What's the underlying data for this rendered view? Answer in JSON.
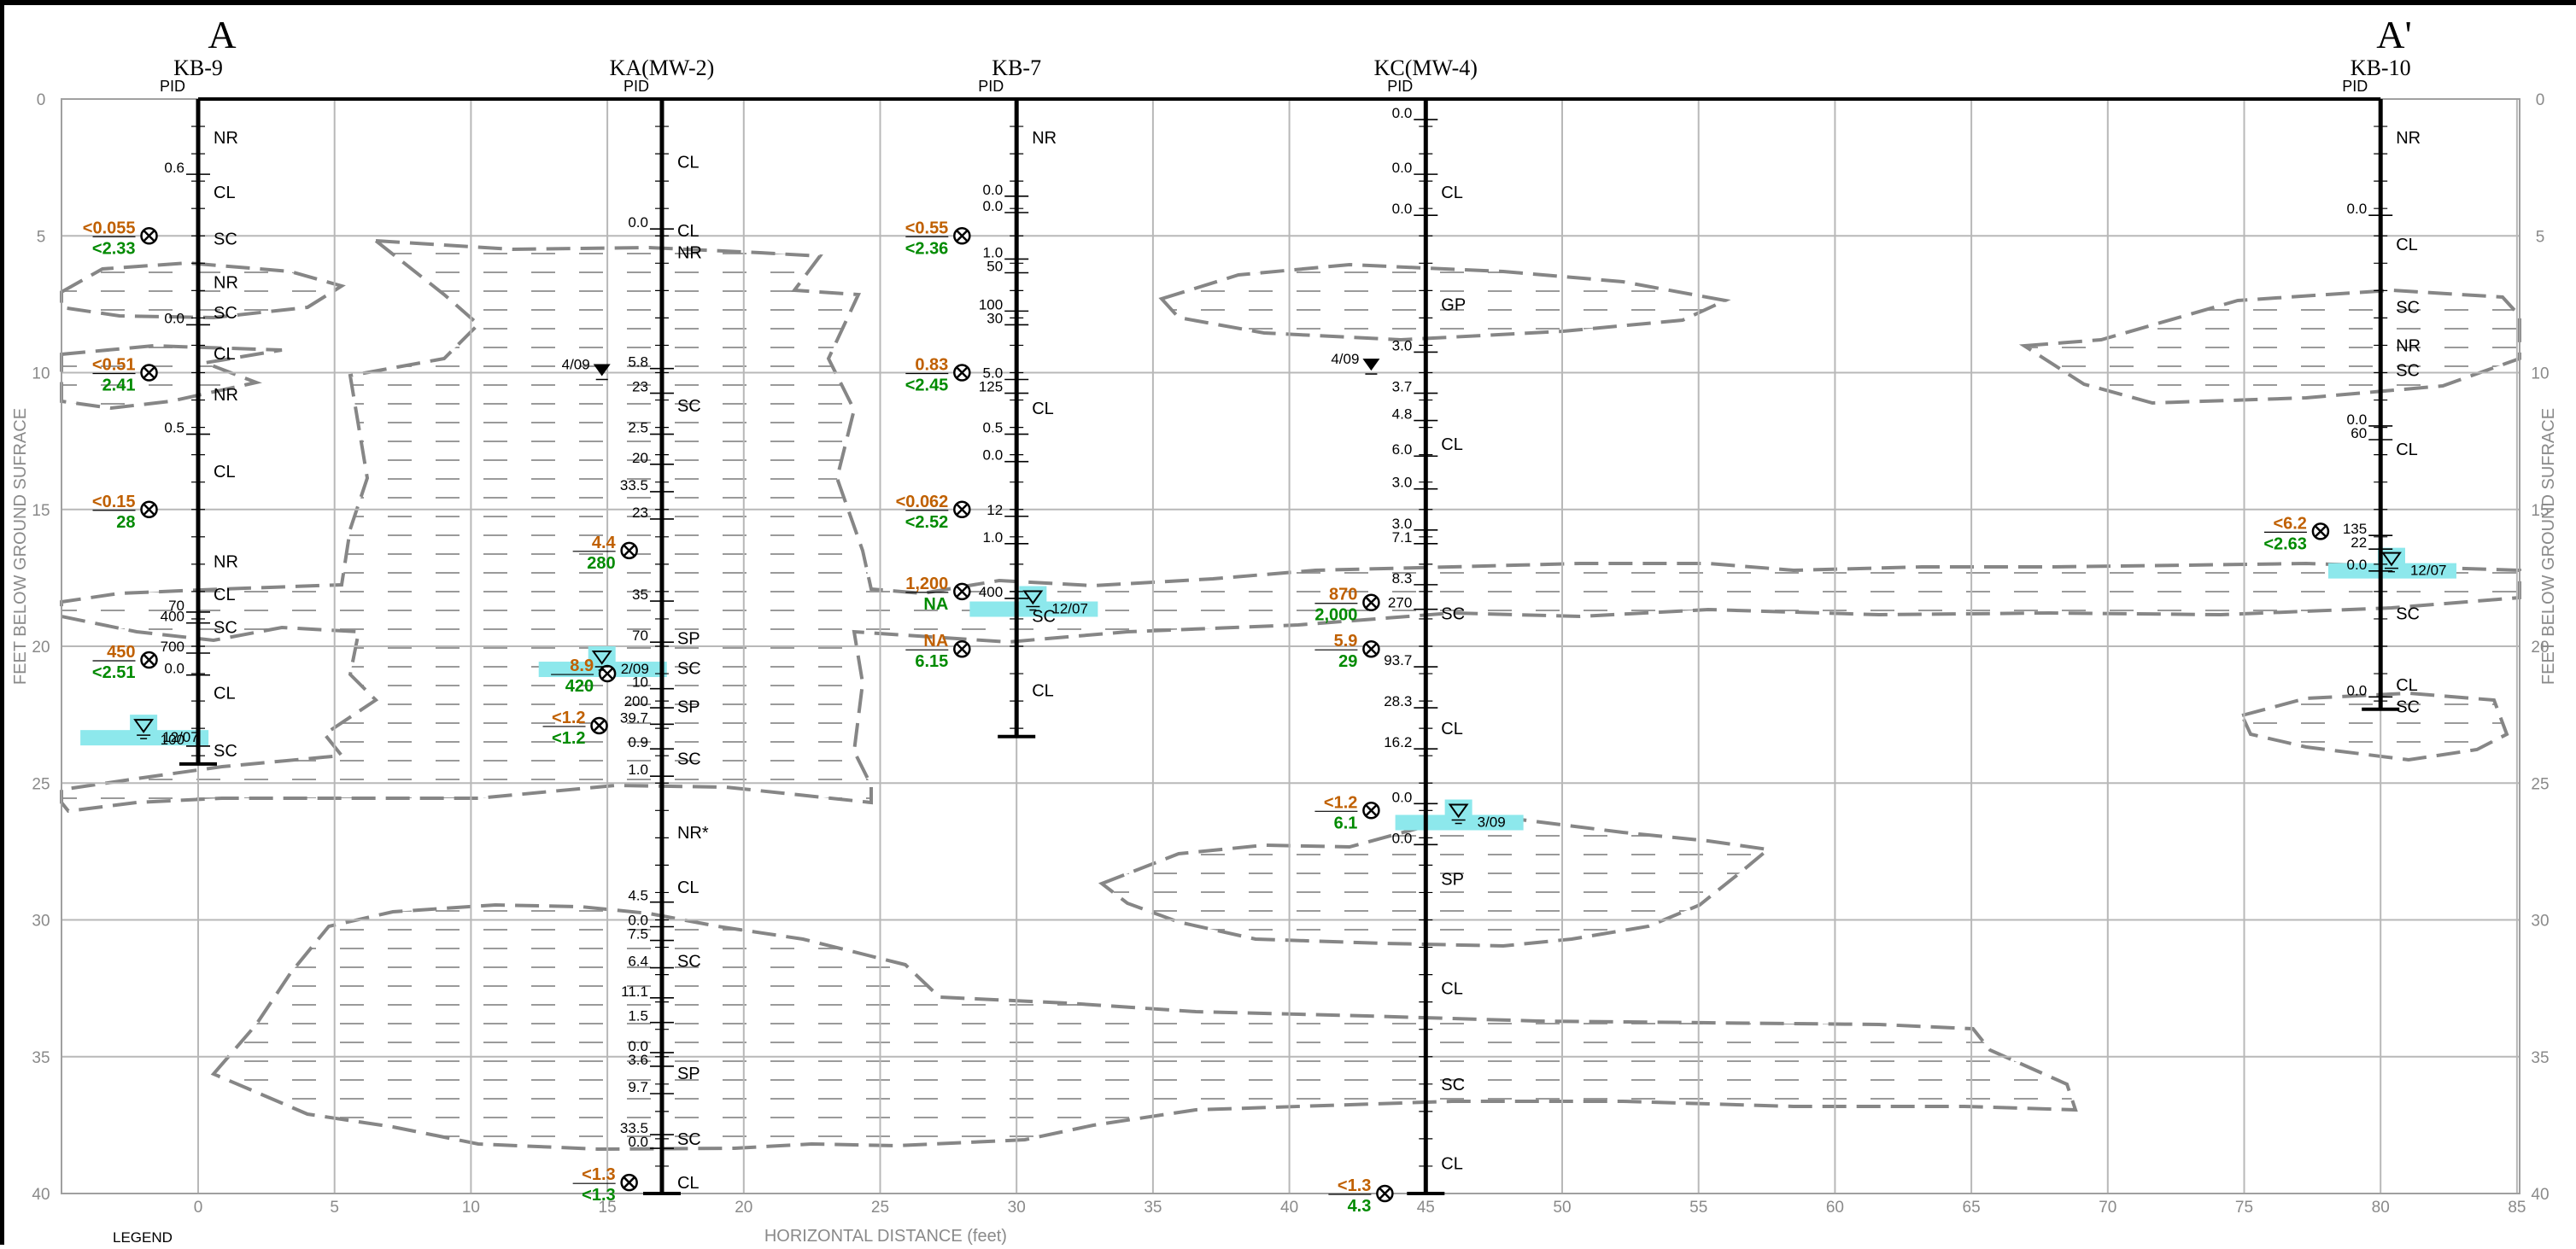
{
  "section": {
    "left_label": "A",
    "right_label": "A'"
  },
  "axes": {
    "x_label": "HORIZONTAL DISTANCE (feet)",
    "y_label": "FEET BELOW GROUND SUFRACE",
    "x_ticks": [
      0,
      5,
      10,
      15,
      20,
      25,
      30,
      35,
      40,
      45,
      50,
      55,
      60,
      65,
      70,
      75,
      80,
      85
    ],
    "y_ticks": [
      0,
      5,
      10,
      15,
      20,
      25,
      30,
      35,
      40
    ],
    "x_range": [
      -5,
      85
    ],
    "y_range": [
      0,
      40
    ]
  },
  "legend_title": "LEGEND",
  "colors": {
    "soil": "#c06000",
    "water": "#008a00",
    "watertable": "#8de8ec",
    "lens": "#888888"
  },
  "borings": [
    {
      "name": "KB-9",
      "x": 0,
      "pid_label": "PID",
      "depth": 24.3,
      "pid": [
        {
          "d": 2.5,
          "v": "0.6"
        },
        {
          "d": 8.0,
          "v": "0.0"
        },
        {
          "d": 12.0,
          "v": "0.5"
        },
        {
          "d": 18.5,
          "v": "70"
        },
        {
          "d": 18.9,
          "v": "400"
        },
        {
          "d": 20.0,
          "v": "700"
        },
        {
          "d": 20.8,
          "v": "0.0"
        },
        {
          "d": 23.4,
          "v": "100"
        }
      ],
      "soils": [
        {
          "d": 1.4,
          "t": "NR"
        },
        {
          "d": 3.4,
          "t": "CL"
        },
        {
          "d": 5.1,
          "t": "SC"
        },
        {
          "d": 6.7,
          "t": "NR"
        },
        {
          "d": 7.8,
          "t": "SC"
        },
        {
          "d": 9.3,
          "t": "CL"
        },
        {
          "d": 10.8,
          "t": "NR"
        },
        {
          "d": 13.6,
          "t": "CL"
        },
        {
          "d": 16.9,
          "t": "NR"
        },
        {
          "d": 18.1,
          "t": "CL"
        },
        {
          "d": 19.3,
          "t": "SC"
        },
        {
          "d": 21.7,
          "t": "CL"
        },
        {
          "d": 23.8,
          "t": "SC"
        }
      ],
      "samples": [
        {
          "d": 5.0,
          "x": -1.8,
          "soil": "<0.055",
          "water": "<2.33"
        },
        {
          "d": 10.0,
          "x": -1.8,
          "soil": "<0.51",
          "water": "2.41"
        },
        {
          "d": 15.0,
          "x": -1.8,
          "soil": "<0.15",
          "water": "28"
        },
        {
          "d": 20.5,
          "x": -1.8,
          "soil": "450",
          "water": "<2.51"
        }
      ],
      "water_level": {
        "d": 23.0,
        "x": -2.0,
        "date": "12/07",
        "measured": false
      }
    },
    {
      "name": "KA(MW-2)",
      "x": 17,
      "pid_label": "PID",
      "depth": 40,
      "pid": [
        {
          "d": 4.5,
          "v": "0.0"
        },
        {
          "d": 9.6,
          "v": "5.8"
        },
        {
          "d": 10.5,
          "v": "23"
        },
        {
          "d": 12.0,
          "v": "2.5"
        },
        {
          "d": 13.1,
          "v": "20"
        },
        {
          "d": 14.1,
          "v": "33.5"
        },
        {
          "d": 15.1,
          "v": "23"
        },
        {
          "d": 18.1,
          "v": "35"
        },
        {
          "d": 19.6,
          "v": "70"
        },
        {
          "d": 21.3,
          "v": "10"
        },
        {
          "d": 22.0,
          "v": "200"
        },
        {
          "d": 22.6,
          "v": "39.7"
        },
        {
          "d": 23.5,
          "v": "0.9"
        },
        {
          "d": 24.5,
          "v": "1.0"
        },
        {
          "d": 29.1,
          "v": "4.5"
        },
        {
          "d": 30.0,
          "v": "0.0"
        },
        {
          "d": 30.5,
          "v": "7.5"
        },
        {
          "d": 31.5,
          "v": "6.4"
        },
        {
          "d": 32.6,
          "v": "11.1"
        },
        {
          "d": 33.5,
          "v": "1.5"
        },
        {
          "d": 34.6,
          "v": "0.0"
        },
        {
          "d": 35.1,
          "v": "3.6"
        },
        {
          "d": 36.1,
          "v": "9.7"
        },
        {
          "d": 37.6,
          "v": "33.5"
        },
        {
          "d": 38.1,
          "v": "0.0"
        }
      ],
      "soils": [
        {
          "d": 2.3,
          "t": "CL"
        },
        {
          "d": 4.8,
          "t": "CL"
        },
        {
          "d": 5.6,
          "t": "NR"
        },
        {
          "d": 11.2,
          "t": "SC"
        },
        {
          "d": 19.7,
          "t": "SP"
        },
        {
          "d": 20.8,
          "t": "SC"
        },
        {
          "d": 22.2,
          "t": "SP"
        },
        {
          "d": 24.1,
          "t": "SC"
        },
        {
          "d": 26.8,
          "t": "NR*"
        },
        {
          "d": 28.8,
          "t": "CL"
        },
        {
          "d": 31.5,
          "t": "SC"
        },
        {
          "d": 35.6,
          "t": "SP"
        },
        {
          "d": 38.0,
          "t": "SC"
        },
        {
          "d": 39.6,
          "t": "CL"
        }
      ],
      "samples": [
        {
          "d": 16.5,
          "x": 15.8,
          "soil": "4.4",
          "water": "280"
        },
        {
          "d": 21.0,
          "x": 15.0,
          "soil": "8.9",
          "water": "420"
        },
        {
          "d": 22.9,
          "x": 14.7,
          "soil": "<1.2",
          "water": "<1.2"
        },
        {
          "d": 39.6,
          "x": 15.8,
          "soil": "<1.3",
          "water": "<1.3"
        }
      ],
      "water_level": {
        "d": 20.5,
        "x": 14.8,
        "date": "2/09",
        "measured": false
      },
      "measured_level": {
        "d": 10.0,
        "x": 14.8,
        "date": "4/09"
      }
    },
    {
      "name": "KB-7",
      "x": 30,
      "pid_label": "PID",
      "depth": 23.3,
      "pid": [
        {
          "d": 3.3,
          "v": "0.0"
        },
        {
          "d": 3.9,
          "v": "0.0"
        },
        {
          "d": 5.6,
          "v": "1.0"
        },
        {
          "d": 6.1,
          "v": "50"
        },
        {
          "d": 7.5,
          "v": "100"
        },
        {
          "d": 8.0,
          "v": "30"
        },
        {
          "d": 10.0,
          "v": "5.0"
        },
        {
          "d": 10.5,
          "v": "125"
        },
        {
          "d": 12.0,
          "v": "0.5"
        },
        {
          "d": 13.0,
          "v": "0.0"
        },
        {
          "d": 15.0,
          "v": "12"
        },
        {
          "d": 16.0,
          "v": "1.0"
        },
        {
          "d": 18.0,
          "v": "400"
        }
      ],
      "soils": [
        {
          "d": 1.4,
          "t": "NR"
        },
        {
          "d": 11.3,
          "t": "CL"
        },
        {
          "d": 18.9,
          "t": "SC"
        },
        {
          "d": 21.6,
          "t": "CL"
        }
      ],
      "samples": [
        {
          "d": 5.0,
          "x": 28.0,
          "soil": "<0.55",
          "water": "<2.36"
        },
        {
          "d": 10.0,
          "x": 28.0,
          "soil": "0.83",
          "water": "<2.45"
        },
        {
          "d": 15.0,
          "x": 28.0,
          "soil": "<0.062",
          "water": "<2.52"
        },
        {
          "d": 18.0,
          "x": 28.0,
          "soil": "1,200",
          "water": "NA"
        },
        {
          "d": 20.1,
          "x": 28.0,
          "soil": "NA",
          "water": "6.15"
        }
      ],
      "water_level": {
        "d": 18.3,
        "x": 30.6,
        "date": "12/07",
        "measured": false
      }
    },
    {
      "name": "KC(MW-4)",
      "x": 45,
      "pid_label": "PID",
      "depth": 40,
      "pid": [
        {
          "d": 0.5,
          "v": "0.0"
        },
        {
          "d": 2.5,
          "v": "0.0"
        },
        {
          "d": 4.0,
          "v": "0.0"
        },
        {
          "d": 9.0,
          "v": "3.0"
        },
        {
          "d": 10.5,
          "v": "3.7"
        },
        {
          "d": 11.5,
          "v": "4.8"
        },
        {
          "d": 12.8,
          "v": "6.0"
        },
        {
          "d": 14.0,
          "v": "3.0"
        },
        {
          "d": 15.5,
          "v": "3.0"
        },
        {
          "d": 16.0,
          "v": "7.1"
        },
        {
          "d": 17.5,
          "v": "8.3"
        },
        {
          "d": 18.4,
          "v": "270"
        },
        {
          "d": 20.5,
          "v": "93.7"
        },
        {
          "d": 22.0,
          "v": "28.3"
        },
        {
          "d": 23.5,
          "v": "16.2"
        },
        {
          "d": 25.5,
          "v": "0.0"
        },
        {
          "d": 27.0,
          "v": "0.0"
        }
      ],
      "soils": [
        {
          "d": 3.4,
          "t": "CL"
        },
        {
          "d": 7.5,
          "t": "GP"
        },
        {
          "d": 12.6,
          "t": "CL"
        },
        {
          "d": 18.8,
          "t": "SC"
        },
        {
          "d": 23.0,
          "t": "CL"
        },
        {
          "d": 28.5,
          "t": "SP"
        },
        {
          "d": 32.5,
          "t": "CL"
        },
        {
          "d": 36.0,
          "t": "SC"
        },
        {
          "d": 38.9,
          "t": "CL"
        }
      ],
      "samples": [
        {
          "d": 18.4,
          "x": 43.0,
          "soil": "870",
          "water": "2,000"
        },
        {
          "d": 20.1,
          "x": 43.0,
          "soil": "5.9",
          "water": "29"
        },
        {
          "d": 26.0,
          "x": 43.0,
          "soil": "<1.2",
          "water": "6.1"
        },
        {
          "d": 40.0,
          "x": 43.5,
          "soil": "<1.3",
          "water": "4.3"
        }
      ],
      "water_level": {
        "d": 26.1,
        "x": 46.2,
        "date": "3/09",
        "measured": false
      },
      "measured_level": {
        "d": 9.8,
        "x": 43.0,
        "date": "4/09"
      }
    },
    {
      "name": "KB-10",
      "x": 80,
      "pid_label": "PID",
      "depth": 22.3,
      "pid": [
        {
          "d": 4.0,
          "v": "0.0"
        },
        {
          "d": 11.7,
          "v": "0.0"
        },
        {
          "d": 12.2,
          "v": "60"
        },
        {
          "d": 15.7,
          "v": "135"
        },
        {
          "d": 16.2,
          "v": "22"
        },
        {
          "d": 17.0,
          "v": "0.0"
        },
        {
          "d": 21.6,
          "v": "0.0"
        }
      ],
      "soils": [
        {
          "d": 1.4,
          "t": "NR"
        },
        {
          "d": 5.3,
          "t": "CL"
        },
        {
          "d": 7.6,
          "t": "SC"
        },
        {
          "d": 9.0,
          "t": "NR"
        },
        {
          "d": 9.9,
          "t": "SC"
        },
        {
          "d": 12.8,
          "t": "CL"
        },
        {
          "d": 18.8,
          "t": "SC"
        },
        {
          "d": 21.4,
          "t": "CL"
        },
        {
          "d": 22.2,
          "t": "SC"
        }
      ],
      "samples": [
        {
          "d": 15.8,
          "x": 77.8,
          "soil": "<6.2",
          "water": "<2.63"
        }
      ],
      "water_level": {
        "d": 16.9,
        "x": 80.4,
        "date": "12/07",
        "measured": false
      }
    }
  ]
}
